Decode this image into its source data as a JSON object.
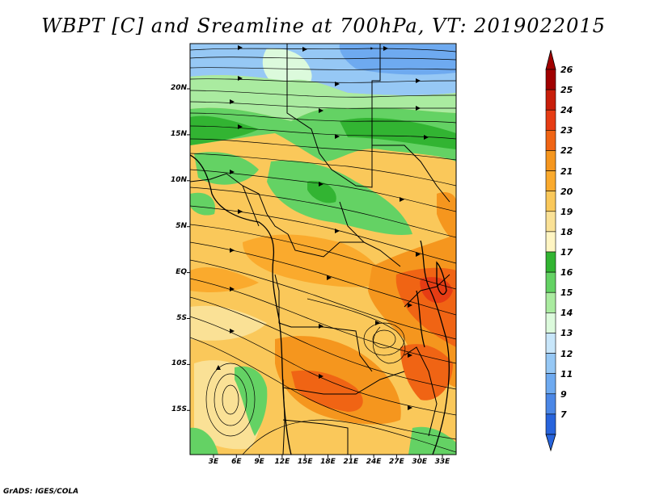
{
  "title": "WBPT [C] and Sreamline at 700hPa, VT: 2019022015",
  "credit": "GrADS: IGES/COLA",
  "map": {
    "lat_ticks": [
      "20N",
      "15N",
      "10N",
      "5N",
      "EQ",
      "5S",
      "10S",
      "15S"
    ],
    "lon_ticks": [
      "3E",
      "6E",
      "9E",
      "12E",
      "15E",
      "18E",
      "21E",
      "24E",
      "27E",
      "30E",
      "33E"
    ]
  },
  "colorbar": {
    "labels": [
      "26",
      "25",
      "24",
      "23",
      "22",
      "21",
      "20",
      "19",
      "18",
      "17",
      "16",
      "15",
      "14",
      "13",
      "12",
      "11",
      "9",
      "7"
    ],
    "colors": [
      "#a00000",
      "#c81e0a",
      "#e63c14",
      "#f06414",
      "#f5961e",
      "#faaa2d",
      "#fac85a",
      "#fae196",
      "#fff5c3",
      "#32b432",
      "#64d264",
      "#aaeba0",
      "#dcfadc",
      "#c8e6fa",
      "#96c8f5",
      "#6eaaf0",
      "#4b87e6",
      "#2864dc"
    ],
    "top_cap": "#a00000",
    "bottom_cap": "#2864dc"
  }
}
